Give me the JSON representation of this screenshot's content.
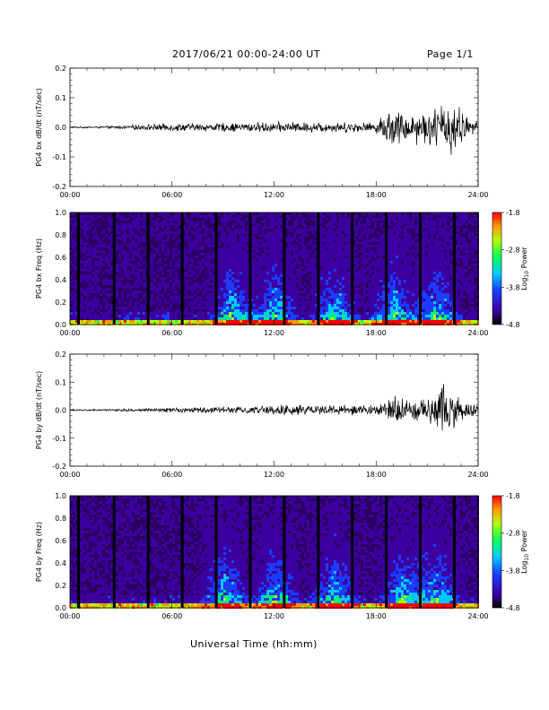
{
  "header": {
    "title": "2017/06/21  00:00-24:00 UT",
    "page": "Page 1/1"
  },
  "x_axis_title": "Universal Time (hh:mm)",
  "chart_data": [
    {
      "type": "line",
      "ylabel": "PG4 bx dB/dt (nT/sec)",
      "xlim": [
        "00:00",
        "24:00"
      ],
      "ylim": [
        -0.2,
        0.2
      ],
      "y_ticks": [
        "0.2",
        "0.1",
        "0.0",
        "-0.1",
        "-0.2"
      ],
      "x_ticks": [
        "00:00",
        "06:00",
        "12:00",
        "18:00",
        "24:00"
      ],
      "envelope_hours": [
        0,
        2,
        4,
        6,
        8,
        10,
        12,
        14,
        16,
        18,
        18.5,
        19,
        19.5,
        20,
        20.5,
        21,
        21.5,
        22,
        22.5,
        23,
        23.5,
        24
      ],
      "envelope_amplitude": [
        0.003,
        0.004,
        0.01,
        0.015,
        0.015,
        0.018,
        0.02,
        0.02,
        0.02,
        0.02,
        0.06,
        0.08,
        0.06,
        0.05,
        0.07,
        0.06,
        0.08,
        0.1,
        0.12,
        0.07,
        0.03,
        0.02
      ],
      "color": "#000000"
    },
    {
      "type": "heatmap",
      "ylabel": "PG4 bx Freq (Hz)",
      "xlim": [
        "00:00",
        "24:00"
      ],
      "ylim": [
        0,
        1.0
      ],
      "y_ticks": [
        "1.0",
        "0.8",
        "0.6",
        "0.4",
        "0.2",
        "0.0"
      ],
      "x_ticks": [
        "00:00",
        "06:00",
        "12:00",
        "18:00",
        "24:00"
      ],
      "colorbar": {
        "label": "Log10 Power",
        "label_base": "Log",
        "label_sub": "10",
        "label_rest": " Power",
        "ticks": [
          "-1.8",
          "-2.8",
          "-3.8",
          "-4.8"
        ],
        "range": [
          -4.8,
          -1.8
        ]
      },
      "gap_hours": [
        0.5,
        2.6,
        4.6,
        6.6,
        8.6,
        10.6,
        12.6,
        14.6,
        16.6,
        18.6,
        20.6,
        22.6
      ],
      "activity_hours": [
        9.5,
        12.0,
        15.5,
        19.0,
        21.5
      ],
      "colors": [
        "#2b005e",
        "#3c00a0",
        "#1a3cff",
        "#00c8ff",
        "#00ff60",
        "#b4ff00",
        "#ff9600",
        "#ff0000"
      ]
    },
    {
      "type": "line",
      "ylabel": "PG4 by dB/dt (nT/sec)",
      "xlim": [
        "00:00",
        "24:00"
      ],
      "ylim": [
        -0.2,
        0.2
      ],
      "y_ticks": [
        "0.2",
        "0.1",
        "0.0",
        "-0.1",
        "-0.2"
      ],
      "x_ticks": [
        "00:00",
        "06:00",
        "12:00",
        "18:00",
        "24:00"
      ],
      "envelope_hours": [
        0,
        2,
        4,
        6,
        8,
        10,
        12,
        14,
        16,
        18,
        18.5,
        19,
        19.5,
        20,
        20.5,
        21,
        21.5,
        22,
        22.5,
        23,
        23.5,
        24
      ],
      "envelope_amplitude": [
        0.003,
        0.004,
        0.006,
        0.01,
        0.012,
        0.015,
        0.02,
        0.02,
        0.02,
        0.02,
        0.04,
        0.07,
        0.05,
        0.04,
        0.05,
        0.06,
        0.08,
        0.12,
        0.09,
        0.05,
        0.03,
        0.02
      ],
      "color": "#000000"
    },
    {
      "type": "heatmap",
      "ylabel": "PG4 by Freq (Hz)",
      "xlim": [
        "00:00",
        "24:00"
      ],
      "ylim": [
        0,
        1.0
      ],
      "y_ticks": [
        "1.0",
        "0.8",
        "0.6",
        "0.4",
        "0.2",
        "0.0"
      ],
      "x_ticks": [
        "00:00",
        "06:00",
        "12:00",
        "18:00",
        "24:00"
      ],
      "colorbar": {
        "label": "Log10 Power",
        "label_base": "Log",
        "label_sub": "10",
        "label_rest": " Power",
        "ticks": [
          "-1.8",
          "-2.8",
          "-3.8",
          "-4.8"
        ],
        "range": [
          -4.8,
          -1.8
        ]
      },
      "gap_hours": [
        0.5,
        2.6,
        4.6,
        6.6,
        8.6,
        10.6,
        12.6,
        14.6,
        16.6,
        18.6,
        20.6,
        22.6
      ],
      "activity_hours": [
        9.0,
        12.0,
        15.5,
        19.5,
        21.5
      ],
      "colors": [
        "#2b005e",
        "#3c00a0",
        "#1a3cff",
        "#00c8ff",
        "#00ff60",
        "#b4ff00",
        "#ff9600",
        "#ff0000"
      ]
    }
  ]
}
